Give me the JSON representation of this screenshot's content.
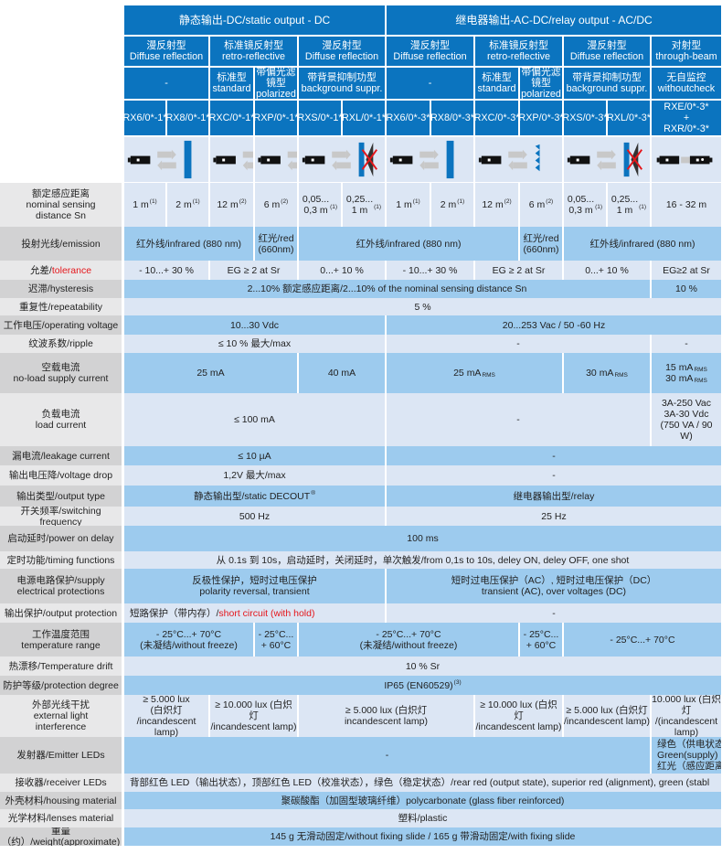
{
  "colors": {
    "header": "#0b74bf",
    "row_light": "#dce6f4",
    "row_blue": "#9dcbee",
    "label_light": "#e8e8e9",
    "label_dark": "#d2d2d3",
    "warning_red": "#e5161b"
  },
  "header": {
    "groups": [
      {
        "text": "静态输出-DC/static output - DC",
        "cols": [
          0,
          5
        ]
      },
      {
        "text": "继电器输出-AC-DC/relay output - AC/DC",
        "cols": [
          6,
          12
        ]
      }
    ],
    "types": [
      {
        "text": "漫反射型\nDiffuse reflection",
        "cols": [
          0,
          1
        ]
      },
      {
        "text": "标准镜反射型\nretro-reflective",
        "cols": [
          2,
          3
        ]
      },
      {
        "text": "漫反射型\nDiffuse reflection",
        "cols": [
          4,
          5
        ]
      },
      {
        "text": "漫反射型\nDiffuse reflection",
        "cols": [
          6,
          7
        ]
      },
      {
        "text": "标准镜反射型\nretro-reflective",
        "cols": [
          8,
          9
        ]
      },
      {
        "text": "漫反射型\nDiffuse reflection",
        "cols": [
          10,
          11
        ]
      },
      {
        "text": "对射型\nthrough-beam",
        "cols": [
          12,
          12
        ]
      }
    ],
    "variants": [
      {
        "text": "-",
        "cols": [
          0,
          1
        ]
      },
      {
        "text": "标准型\nstandard",
        "cols": [
          2,
          2
        ]
      },
      {
        "text": "带偏光滤\n镜型\npolarized",
        "cols": [
          3,
          3
        ]
      },
      {
        "text": "带背景抑制功型\nbackground suppr.",
        "cols": [
          4,
          5
        ]
      },
      {
        "text": "-",
        "cols": [
          6,
          7
        ]
      },
      {
        "text": "标准型\nstandard",
        "cols": [
          8,
          8
        ]
      },
      {
        "text": "带偏光滤\n镜型\npolarized",
        "cols": [
          9,
          9
        ]
      },
      {
        "text": "带背景抑制功型\nbackground suppr.",
        "cols": [
          10,
          11
        ]
      },
      {
        "text": "无自监控\nwithoutcheck",
        "cols": [
          12,
          12
        ]
      }
    ],
    "models": [
      "RX6/0*-1*",
      "RX8/0*-1*",
      "RXC/0*-1*",
      "RXP/0*-1*",
      "RXS/0*-1*",
      "RXL/0*-1*",
      "RX6/0*-3*",
      "RX8/0*-3*",
      "RXC/0*-3*",
      "RXP/0*-3*",
      "RXS/0*-3*",
      "RXL/0*-3*",
      "RXE/0*-3*\n+\nRXR/0*-3*"
    ],
    "diagrams": [
      {
        "icon": "diffuse-reflection-diagram-icon",
        "cols": [
          0,
          1
        ]
      },
      {
        "icon": "retro-reflective-diagram-icon",
        "cols": [
          2,
          2
        ]
      },
      {
        "icon": "polarized-retro-diagram-icon",
        "cols": [
          3,
          3
        ]
      },
      {
        "icon": "background-suppression-diagram-icon",
        "cols": [
          4,
          5
        ]
      },
      {
        "icon": "diffuse-reflection-diagram-icon",
        "cols": [
          6,
          7
        ]
      },
      {
        "icon": "retro-reflective-diagram-icon",
        "cols": [
          8,
          9
        ]
      },
      {
        "icon": "background-suppression-diagram-icon",
        "cols": [
          10,
          11
        ]
      },
      {
        "icon": "through-beam-diagram-icon",
        "cols": [
          12,
          12
        ]
      }
    ]
  },
  "rows": [
    {
      "label": "额定感应距离\nnominal sensing\ndistance Sn",
      "style": "light",
      "cells": [
        {
          "text": "1 m",
          "sup": "(1)",
          "cols": [
            0,
            0
          ]
        },
        {
          "text": "2 m",
          "sup": "(1)",
          "cols": [
            1,
            1
          ]
        },
        {
          "text": "12 m",
          "sup": "(2)",
          "cols": [
            2,
            2
          ]
        },
        {
          "text": "6 m",
          "sup": "(2)",
          "cols": [
            3,
            3
          ]
        },
        {
          "text": "0,05...\n0,3 m",
          "sup": "(1)",
          "cols": [
            4,
            4
          ]
        },
        {
          "text": "0,25...\n1 m",
          "sup": "(1)",
          "cols": [
            5,
            5
          ]
        },
        {
          "text": "1 m",
          "sup": "(1)",
          "cols": [
            6,
            6
          ]
        },
        {
          "text": "2 m",
          "sup": "(1)",
          "cols": [
            7,
            7
          ]
        },
        {
          "text": "12 m",
          "sup": "(2)",
          "cols": [
            8,
            8
          ]
        },
        {
          "text": "6 m",
          "sup": "(2)",
          "cols": [
            9,
            9
          ]
        },
        {
          "text": "0,05...\n0,3 m",
          "sup": "(1)",
          "cols": [
            10,
            10
          ]
        },
        {
          "text": "0,25...\n1 m",
          "sup": "(1)",
          "cols": [
            11,
            11
          ]
        },
        {
          "text": "16 - 32 m",
          "cols": [
            12,
            12
          ]
        }
      ]
    },
    {
      "label": "投射光线/emission",
      "style": "blue",
      "cells": [
        {
          "text": "红外线/infrared (880 nm)",
          "cols": [
            0,
            2
          ]
        },
        {
          "text": "红光/red\n(660nm)",
          "cols": [
            3,
            3
          ]
        },
        {
          "text": "红外线/infrared (880 nm)",
          "cols": [
            4,
            8
          ]
        },
        {
          "text": "红光/red\n(660nm)",
          "cols": [
            9,
            9
          ]
        },
        {
          "text": "红外线/infrared (880 nm)",
          "cols": [
            10,
            12
          ]
        }
      ]
    },
    {
      "label": "允差/",
      "label_red": "tolerance",
      "style": "light",
      "cells": [
        {
          "text": "- 10...+ 30 %",
          "cols": [
            0,
            1
          ]
        },
        {
          "text": "EG ≥ 2 at Sr",
          "cols": [
            2,
            3
          ]
        },
        {
          "text": "0...+ 10 %",
          "cols": [
            4,
            5
          ]
        },
        {
          "text": "- 10...+ 30 %",
          "cols": [
            6,
            7
          ]
        },
        {
          "text": "EG ≥ 2 at Sr",
          "cols": [
            8,
            9
          ]
        },
        {
          "text": "0...+ 10 %",
          "cols": [
            10,
            11
          ]
        },
        {
          "text": "EG≥2 at Sr",
          "cols": [
            12,
            12
          ]
        }
      ]
    },
    {
      "label": "迟滞/hysteresis",
      "style": "blue",
      "cells": [
        {
          "text": "2...10% 额定感应距离/2...10% of the nominal sensing distance Sn",
          "cols": [
            0,
            11
          ]
        },
        {
          "text": "10 %",
          "cols": [
            12,
            12
          ]
        }
      ]
    },
    {
      "label": "重复性/repeatability",
      "style": "light",
      "cells": [
        {
          "text": "5 %",
          "cols": [
            0,
            12
          ]
        }
      ]
    },
    {
      "label": "工作电压/operating voltage",
      "style": "blue",
      "cells": [
        {
          "text": "10...30 Vdc",
          "cols": [
            0,
            5
          ]
        },
        {
          "text": "20...253 Vac / 50 -60 Hz",
          "cols": [
            6,
            12
          ]
        }
      ]
    },
    {
      "label": "纹波系数/ripple",
      "style": "light",
      "cells": [
        {
          "text": "≤ 10 % 最大/max",
          "cols": [
            0,
            5
          ]
        },
        {
          "text": "-",
          "cols": [
            6,
            11
          ]
        },
        {
          "text": "-",
          "cols": [
            12,
            12
          ]
        }
      ]
    },
    {
      "label": "空载电流\nno-load supply current",
      "style": "blue",
      "cells": [
        {
          "text": "25 mA",
          "cols": [
            0,
            3
          ]
        },
        {
          "text": "40 mA",
          "cols": [
            4,
            5
          ]
        },
        {
          "text": "25 mA",
          "sub": "RMS",
          "cols": [
            6,
            9
          ]
        },
        {
          "text": "30 mA",
          "sub": "RMS",
          "cols": [
            10,
            11
          ]
        },
        {
          "text": "15 mA\n30 mA",
          "sub": "RMS",
          "cols": [
            12,
            12
          ]
        }
      ]
    },
    {
      "label": "负载电流\nload current",
      "style": "light",
      "cells": [
        {
          "text": "≤ 100 mA",
          "cols": [
            0,
            5
          ]
        },
        {
          "text": "-",
          "cols": [
            6,
            11
          ]
        },
        {
          "text": "3A-250 Vac\n3A-30 Vdc\n(750 VA / 90\nW)",
          "cols": [
            12,
            12
          ]
        }
      ]
    },
    {
      "label": "漏电流/leakage  current",
      "style": "blue",
      "cells": [
        {
          "text": "≤ 10 µA",
          "cols": [
            0,
            5
          ]
        },
        {
          "text": "-",
          "cols": [
            6,
            12
          ]
        }
      ]
    },
    {
      "label": "输出电压降/voltage drop",
      "style": "light",
      "cells": [
        {
          "text": "1,2V 最大/max",
          "cols": [
            0,
            5
          ]
        },
        {
          "text": "-",
          "cols": [
            6,
            12
          ]
        }
      ]
    },
    {
      "label": "输出类型/output type",
      "style": "blue",
      "cells": [
        {
          "text": "静态输出型/static DECOUT",
          "sup": "®",
          "cols": [
            0,
            5
          ]
        },
        {
          "text": "继电器输出型/relay",
          "cols": [
            6,
            12
          ]
        }
      ]
    },
    {
      "label": "开关频率/switching frequency",
      "style": "light",
      "cells": [
        {
          "text": "500 Hz",
          "cols": [
            0,
            5
          ]
        },
        {
          "text": "25 Hz",
          "cols": [
            6,
            12
          ]
        }
      ]
    },
    {
      "label": "启动延时/power on delay",
      "style": "blue",
      "cells": [
        {
          "text": "100 ms",
          "cols": [
            0,
            12
          ]
        }
      ]
    },
    {
      "label": "定时功能/timing functions",
      "style": "light",
      "cells": [
        {
          "text": "从 0.1s 到 10s，启动延时，关闭延时，单次触发/from 0,1s to 10s, deley ON, deley OFF, one shot",
          "cols": [
            0,
            12
          ]
        }
      ]
    },
    {
      "label": "电源电路保护/supply\nelectrical protections",
      "style": "blue",
      "cells": [
        {
          "text": "反极性保护，短时过电压保护\npolarity reversal, transient",
          "cols": [
            0,
            5
          ]
        },
        {
          "text": "短时过电压保护（AC）, 短时过电压保护（DC）\ntransient (AC), over voltages (DC)",
          "cols": [
            6,
            12
          ]
        }
      ]
    },
    {
      "label": "输出保护/output protection",
      "style": "light",
      "cells": [
        {
          "text": "短路保护（带内存）/",
          "red": "short circuit (with hold)",
          "cols": [
            0,
            5
          ],
          "align": "left"
        },
        {
          "text": "-",
          "cols": [
            6,
            12
          ]
        }
      ]
    },
    {
      "label": "工作温度范围\ntemperature range",
      "style": "blue",
      "cells": [
        {
          "text": "- 25°C...+ 70°C\n(未凝结/without freeze)",
          "cols": [
            0,
            2
          ]
        },
        {
          "text": "- 25°C...\n+ 60°C",
          "cols": [
            3,
            3
          ]
        },
        {
          "text": "- 25°C...+ 70°C\n(未凝结/without freeze)",
          "cols": [
            4,
            8
          ]
        },
        {
          "text": "- 25°C...\n+ 60°C",
          "cols": [
            9,
            9
          ]
        },
        {
          "text": "- 25°C...+ 70°C",
          "cols": [
            10,
            12
          ]
        }
      ]
    },
    {
      "label": "热漂移/Temperature drift",
      "style": "light",
      "cells": [
        {
          "text": "10 % Sr",
          "cols": [
            0,
            12
          ]
        }
      ]
    },
    {
      "label": "防护等级/protection degree",
      "style": "blue",
      "cells": [
        {
          "text": "IP65 (EN60529)",
          "sup": "(3)",
          "cols": [
            0,
            12
          ]
        }
      ]
    },
    {
      "label": "外部光线干扰\nexternal light\ninterference",
      "style": "light",
      "cells": [
        {
          "text": "≥ 5.000 lux\n(白炽灯\n/incandescent lamp)",
          "cols": [
            0,
            1
          ]
        },
        {
          "text": "≥ 10.000 lux (白炽灯\n/incandescent lamp)",
          "cols": [
            2,
            3
          ]
        },
        {
          "text": "≥ 5.000 lux (白炽灯\nincandescent lamp)",
          "cols": [
            4,
            7
          ]
        },
        {
          "text": "≥ 10.000 lux (白炽灯\n/incandescent lamp)",
          "cols": [
            8,
            9
          ]
        },
        {
          "text": "≥ 5.000 lux (白炽灯\n/incandescent lamp)",
          "cols": [
            10,
            11
          ]
        },
        {
          "text": "10.000 lux (白炽灯\n/(incandescent\nlamp)",
          "cols": [
            12,
            12
          ]
        }
      ]
    },
    {
      "label": "发射器/Emitter LEDs",
      "style": "blue",
      "cells": [
        {
          "text": "-",
          "cols": [
            0,
            11
          ]
        },
        {
          "text": "绿色（供电状态）\nGreen(supply)\n红光（感应距离）",
          "cols": [
            12,
            12
          ],
          "align": "left"
        }
      ]
    },
    {
      "label": "接收器/receiver LEDs",
      "style": "light",
      "cells": [
        {
          "text": "背部红色 LED（输出状态），顶部红色 LED（校准状态），绿色（稳定状态）/rear red (output state), superior red (alignment), green (stabl",
          "cols": [
            0,
            12
          ],
          "align": "left"
        }
      ]
    },
    {
      "label": "外壳材料/housing material",
      "style": "blue",
      "cells": [
        {
          "text": "聚碳酸酯（加固型玻璃纤维）polycarbonate (glass fiber  reinforced)",
          "cols": [
            0,
            12
          ]
        }
      ]
    },
    {
      "label": "光学材料/lenses material",
      "style": "light",
      "cells": [
        {
          "text": "塑料/plastic",
          "cols": [
            0,
            12
          ]
        }
      ]
    },
    {
      "label": "重量（约）/weight(approximate)",
      "style": "blue",
      "cells": [
        {
          "text": "145 g 无滑动固定/without fixing slide / 165 g 带滑动固定/with fixing  slide",
          "cols": [
            0,
            12
          ]
        }
      ]
    }
  ]
}
